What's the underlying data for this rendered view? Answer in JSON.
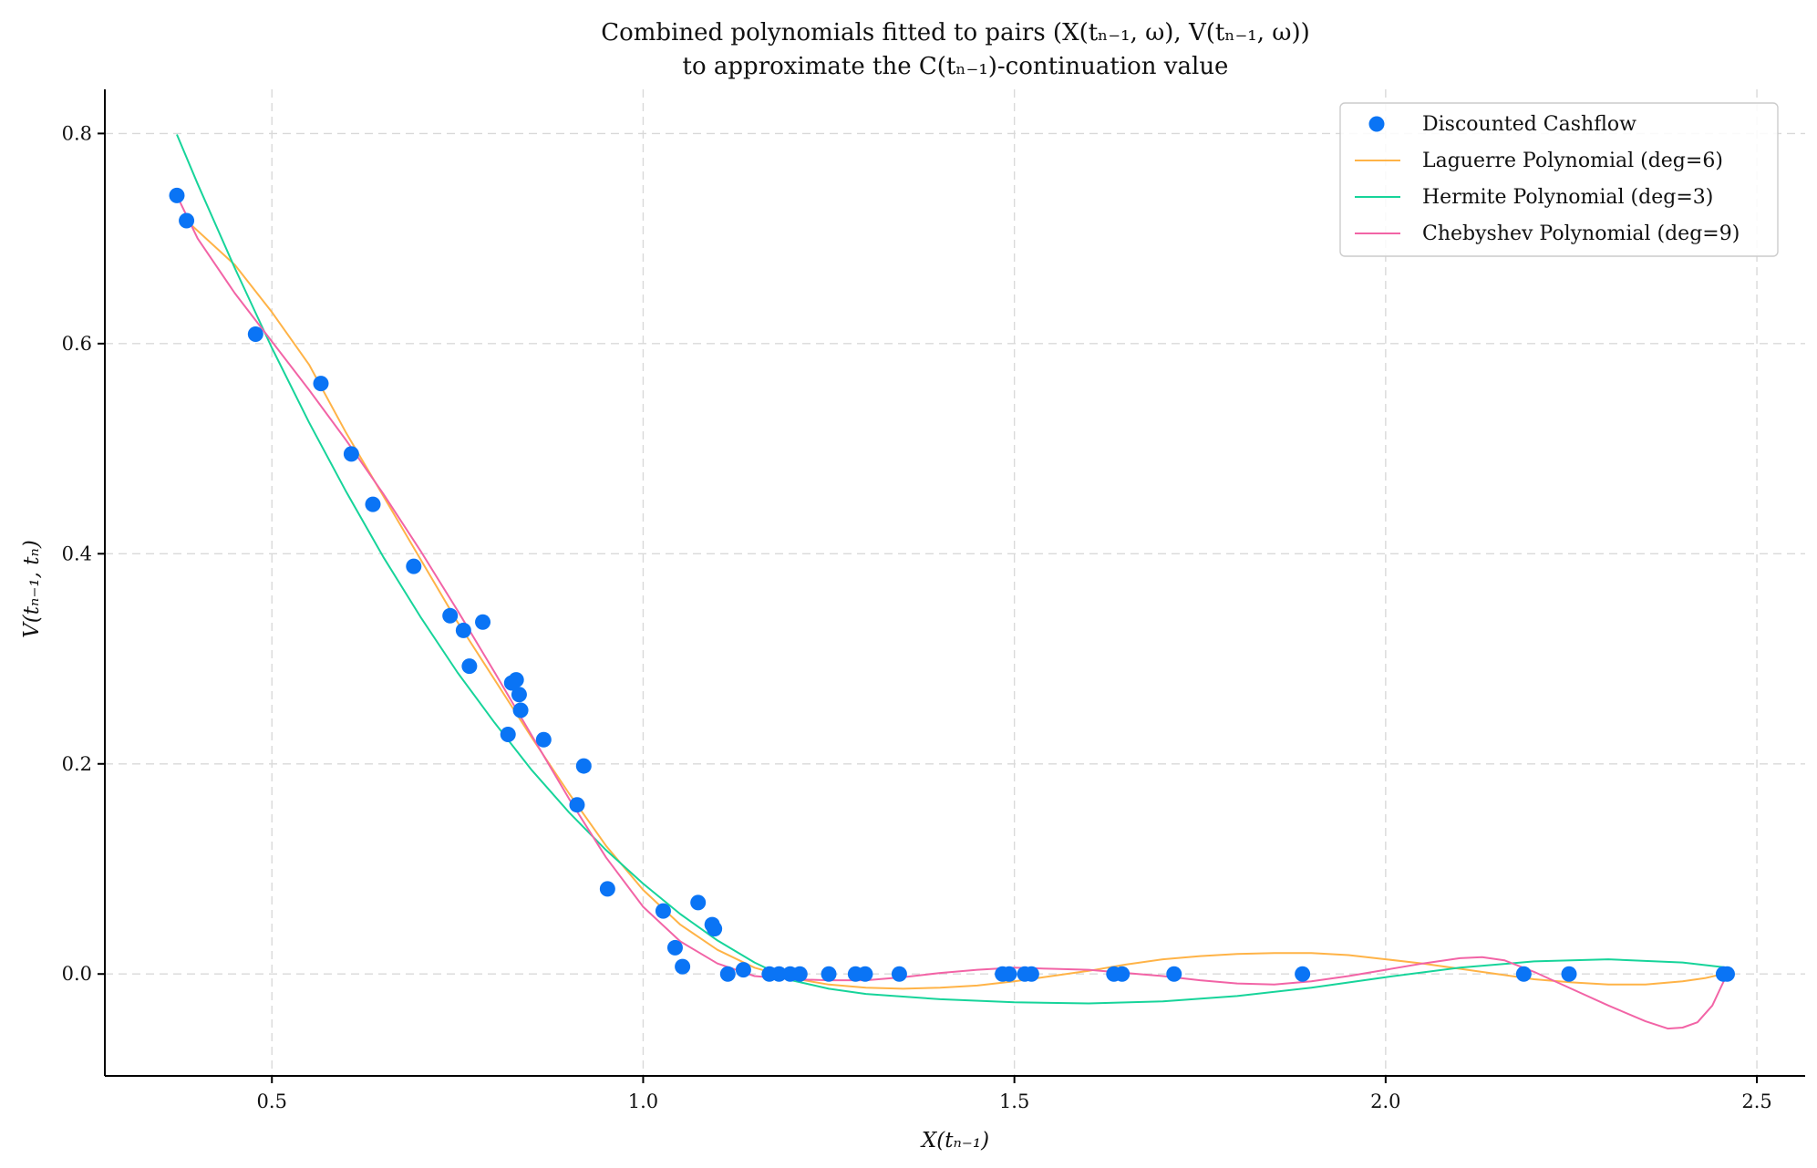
{
  "chart_data": {
    "type": "scatter",
    "title_lines": [
      "Combined polynomials fitted to pairs (X(tₙ₋₁, ω), V(tₙ₋₁, ω))",
      "to approximate the C(tₙ₋₁)-continuation value"
    ],
    "xlabel": "X(tₙ₋₁)",
    "ylabel": "V(tₙ₋₁, tₙ)",
    "xlim": [
      0.275,
      2.565
    ],
    "ylim": [
      -0.097,
      0.842
    ],
    "xticks": [
      0.5,
      1.0,
      1.5,
      2.0,
      2.5
    ],
    "xtick_labels": [
      "0.5",
      "1.0",
      "1.5",
      "2.0",
      "2.5"
    ],
    "yticks": [
      0.0,
      0.2,
      0.4,
      0.6,
      0.8
    ],
    "ytick_labels": [
      "0.0",
      "0.2",
      "0.4",
      "0.6",
      "0.8"
    ],
    "grid": true,
    "legend_position": "top-right",
    "series": [
      {
        "name": "Discounted Cashflow",
        "kind": "scatter",
        "color": "#0a74f5",
        "points": [
          [
            0.372,
            0.741
          ],
          [
            0.385,
            0.717
          ],
          [
            0.478,
            0.609
          ],
          [
            0.566,
            0.562
          ],
          [
            0.607,
            0.495
          ],
          [
            0.636,
            0.447
          ],
          [
            0.691,
            0.388
          ],
          [
            0.74,
            0.341
          ],
          [
            0.758,
            0.327
          ],
          [
            0.766,
            0.293
          ],
          [
            0.784,
            0.335
          ],
          [
            0.818,
            0.228
          ],
          [
            0.823,
            0.277
          ],
          [
            0.829,
            0.28
          ],
          [
            0.833,
            0.266
          ],
          [
            0.835,
            0.251
          ],
          [
            0.866,
            0.223
          ],
          [
            0.92,
            0.198
          ],
          [
            0.911,
            0.161
          ],
          [
            0.952,
            0.081
          ],
          [
            1.027,
            0.06
          ],
          [
            1.043,
            0.025
          ],
          [
            1.053,
            0.007
          ],
          [
            1.074,
            0.068
          ],
          [
            1.093,
            0.047
          ],
          [
            1.096,
            0.043
          ],
          [
            1.114,
            0.0
          ],
          [
            1.135,
            0.004
          ],
          [
            1.17,
            0.0
          ],
          [
            1.183,
            0.0
          ],
          [
            1.198,
            0.0
          ],
          [
            1.211,
            0.0
          ],
          [
            1.25,
            0.0
          ],
          [
            1.286,
            0.0
          ],
          [
            1.299,
            0.0
          ],
          [
            1.345,
            0.0
          ],
          [
            1.484,
            0.0
          ],
          [
            1.493,
            0.0
          ],
          [
            1.514,
            0.0
          ],
          [
            1.523,
            0.0
          ],
          [
            1.634,
            0.0
          ],
          [
            1.645,
            0.0
          ],
          [
            1.715,
            0.0
          ],
          [
            1.888,
            0.0
          ],
          [
            2.186,
            0.0
          ],
          [
            2.247,
            0.0
          ],
          [
            2.455,
            0.0
          ],
          [
            2.46,
            0.0
          ]
        ]
      },
      {
        "name": "Laguerre Polynomial (deg=6)",
        "kind": "line",
        "color": "#ffb347",
        "points": [
          [
            0.385,
            0.717
          ],
          [
            0.45,
            0.675
          ],
          [
            0.5,
            0.63
          ],
          [
            0.55,
            0.58
          ],
          [
            0.6,
            0.515
          ],
          [
            0.65,
            0.455
          ],
          [
            0.7,
            0.395
          ],
          [
            0.75,
            0.335
          ],
          [
            0.8,
            0.28
          ],
          [
            0.85,
            0.225
          ],
          [
            0.9,
            0.172
          ],
          [
            0.95,
            0.122
          ],
          [
            1.0,
            0.08
          ],
          [
            1.05,
            0.047
          ],
          [
            1.1,
            0.023
          ],
          [
            1.15,
            0.006
          ],
          [
            1.2,
            -0.004
          ],
          [
            1.25,
            -0.01
          ],
          [
            1.3,
            -0.013
          ],
          [
            1.35,
            -0.014
          ],
          [
            1.4,
            -0.013
          ],
          [
            1.45,
            -0.011
          ],
          [
            1.5,
            -0.007
          ],
          [
            1.55,
            -0.002
          ],
          [
            1.6,
            0.003
          ],
          [
            1.65,
            0.009
          ],
          [
            1.7,
            0.014
          ],
          [
            1.75,
            0.017
          ],
          [
            1.8,
            0.019
          ],
          [
            1.85,
            0.02
          ],
          [
            1.9,
            0.02
          ],
          [
            1.95,
            0.018
          ],
          [
            2.0,
            0.014
          ],
          [
            2.05,
            0.01
          ],
          [
            2.1,
            0.005
          ],
          [
            2.15,
            0.0
          ],
          [
            2.2,
            -0.005
          ],
          [
            2.25,
            -0.008
          ],
          [
            2.3,
            -0.01
          ],
          [
            2.35,
            -0.01
          ],
          [
            2.4,
            -0.007
          ],
          [
            2.43,
            -0.004
          ],
          [
            2.46,
            0.001
          ]
        ]
      },
      {
        "name": "Hermite Polynomial (deg=3)",
        "kind": "line",
        "color": "#17d49a",
        "points": [
          [
            0.372,
            0.799
          ],
          [
            0.4,
            0.752
          ],
          [
            0.45,
            0.672
          ],
          [
            0.5,
            0.596
          ],
          [
            0.55,
            0.525
          ],
          [
            0.6,
            0.459
          ],
          [
            0.65,
            0.397
          ],
          [
            0.7,
            0.34
          ],
          [
            0.75,
            0.287
          ],
          [
            0.8,
            0.239
          ],
          [
            0.85,
            0.194
          ],
          [
            0.9,
            0.154
          ],
          [
            0.95,
            0.118
          ],
          [
            1.0,
            0.086
          ],
          [
            1.05,
            0.057
          ],
          [
            1.1,
            0.032
          ],
          [
            1.15,
            0.011
          ],
          [
            1.2,
            -0.006
          ],
          [
            1.25,
            -0.014
          ],
          [
            1.3,
            -0.019
          ],
          [
            1.4,
            -0.024
          ],
          [
            1.5,
            -0.027
          ],
          [
            1.6,
            -0.028
          ],
          [
            1.7,
            -0.026
          ],
          [
            1.8,
            -0.021
          ],
          [
            1.9,
            -0.013
          ],
          [
            2.0,
            -0.003
          ],
          [
            2.1,
            0.006
          ],
          [
            2.2,
            0.012
          ],
          [
            2.3,
            0.014
          ],
          [
            2.4,
            0.011
          ],
          [
            2.46,
            0.006
          ]
        ]
      },
      {
        "name": "Chebyshev Polynomial (deg=9)",
        "kind": "line",
        "color": "#f264a6",
        "points": [
          [
            0.372,
            0.741
          ],
          [
            0.4,
            0.7
          ],
          [
            0.45,
            0.648
          ],
          [
            0.5,
            0.602
          ],
          [
            0.55,
            0.556
          ],
          [
            0.6,
            0.508
          ],
          [
            0.65,
            0.457
          ],
          [
            0.7,
            0.403
          ],
          [
            0.75,
            0.346
          ],
          [
            0.8,
            0.287
          ],
          [
            0.85,
            0.227
          ],
          [
            0.9,
            0.167
          ],
          [
            0.95,
            0.111
          ],
          [
            1.0,
            0.064
          ],
          [
            1.05,
            0.031
          ],
          [
            1.1,
            0.01
          ],
          [
            1.15,
            -0.002
          ],
          [
            1.2,
            -0.005
          ],
          [
            1.25,
            -0.006
          ],
          [
            1.3,
            -0.006
          ],
          [
            1.35,
            -0.003
          ],
          [
            1.4,
            0.001
          ],
          [
            1.45,
            0.004
          ],
          [
            1.5,
            0.006
          ],
          [
            1.55,
            0.005
          ],
          [
            1.6,
            0.004
          ],
          [
            1.65,
            0.001
          ],
          [
            1.7,
            -0.002
          ],
          [
            1.75,
            -0.006
          ],
          [
            1.8,
            -0.009
          ],
          [
            1.85,
            -0.01
          ],
          [
            1.9,
            -0.007
          ],
          [
            1.95,
            -0.002
          ],
          [
            2.0,
            0.004
          ],
          [
            2.05,
            0.01
          ],
          [
            2.1,
            0.015
          ],
          [
            2.13,
            0.016
          ],
          [
            2.16,
            0.013
          ],
          [
            2.2,
            0.002
          ],
          [
            2.25,
            -0.014
          ],
          [
            2.3,
            -0.03
          ],
          [
            2.35,
            -0.045
          ],
          [
            2.38,
            -0.052
          ],
          [
            2.4,
            -0.051
          ],
          [
            2.42,
            -0.046
          ],
          [
            2.44,
            -0.03
          ],
          [
            2.45,
            -0.015
          ],
          [
            2.46,
            0.0
          ]
        ]
      }
    ]
  }
}
